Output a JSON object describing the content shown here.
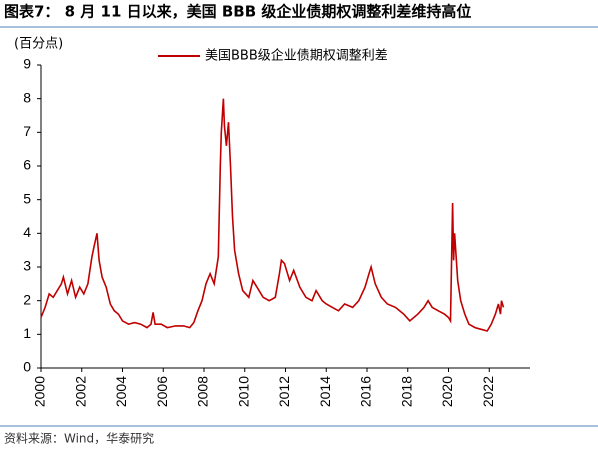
{
  "chart_data": {
    "type": "line",
    "title": "图表7： 8 月 11 日以来，美国 BBB 级企业债期权调整利差维持高位",
    "y_unit": "(百分点)",
    "source": "资料来源：Wind，华泰研究",
    "series": [
      {
        "name": "美国BBB级企业债期权调整利差",
        "color": "#c00000",
        "x": [
          2000.0,
          2000.2,
          2000.4,
          2000.6,
          2000.8,
          2001.0,
          2001.1,
          2001.3,
          2001.5,
          2001.7,
          2001.9,
          2002.1,
          2002.3,
          2002.5,
          2002.6,
          2002.75,
          2002.85,
          2003.0,
          2003.2,
          2003.4,
          2003.6,
          2003.8,
          2004.0,
          2004.3,
          2004.6,
          2004.9,
          2005.2,
          2005.4,
          2005.5,
          2005.6,
          2005.9,
          2006.2,
          2006.6,
          2007.0,
          2007.3,
          2007.5,
          2007.7,
          2007.9,
          2008.1,
          2008.3,
          2008.5,
          2008.7,
          2008.8,
          2008.85,
          2008.95,
          2009.0,
          2009.1,
          2009.2,
          2009.3,
          2009.4,
          2009.5,
          2009.7,
          2009.9,
          2010.2,
          2010.4,
          2010.6,
          2010.9,
          2011.2,
          2011.5,
          2011.7,
          2011.8,
          2011.95,
          2012.2,
          2012.4,
          2012.7,
          2013.0,
          2013.3,
          2013.5,
          2013.8,
          2014.0,
          2014.3,
          2014.6,
          2014.9,
          2015.3,
          2015.6,
          2015.9,
          2016.1,
          2016.2,
          2016.4,
          2016.7,
          2017.0,
          2017.4,
          2017.8,
          2018.1,
          2018.5,
          2018.8,
          2019.0,
          2019.2,
          2019.5,
          2019.8,
          2020.0,
          2020.1,
          2020.2,
          2020.25,
          2020.3,
          2020.45,
          2020.6,
          2020.8,
          2021.0,
          2021.3,
          2021.6,
          2021.9,
          2022.1,
          2022.3,
          2022.45,
          2022.55,
          2022.6,
          2022.7
        ],
        "values": [
          1.5,
          1.8,
          2.2,
          2.1,
          2.3,
          2.5,
          2.7,
          2.2,
          2.6,
          2.1,
          2.4,
          2.2,
          2.5,
          3.3,
          3.6,
          4.0,
          3.2,
          2.7,
          2.4,
          1.9,
          1.7,
          1.6,
          1.4,
          1.3,
          1.35,
          1.3,
          1.2,
          1.3,
          1.65,
          1.3,
          1.3,
          1.2,
          1.25,
          1.25,
          1.2,
          1.35,
          1.7,
          2.0,
          2.5,
          2.8,
          2.5,
          3.3,
          6.0,
          7.0,
          8.0,
          7.2,
          6.6,
          7.3,
          6.0,
          4.5,
          3.5,
          2.8,
          2.3,
          2.1,
          2.6,
          2.4,
          2.1,
          2.0,
          2.1,
          2.8,
          3.2,
          3.1,
          2.6,
          2.9,
          2.4,
          2.1,
          2.0,
          2.3,
          2.0,
          1.9,
          1.8,
          1.7,
          1.9,
          1.8,
          2.0,
          2.4,
          2.8,
          3.0,
          2.5,
          2.1,
          1.9,
          1.8,
          1.6,
          1.4,
          1.6,
          1.8,
          2.0,
          1.8,
          1.7,
          1.6,
          1.5,
          1.4,
          4.9,
          3.2,
          4.0,
          2.6,
          2.0,
          1.6,
          1.3,
          1.2,
          1.15,
          1.1,
          1.3,
          1.6,
          1.9,
          1.6,
          2.0,
          1.8
        ]
      }
    ],
    "xlim": [
      2000,
      2024
    ],
    "xticks": [
      2000,
      2002,
      2004,
      2006,
      2008,
      2010,
      2012,
      2014,
      2016,
      2018,
      2020,
      2022
    ],
    "ylim": [
      0,
      9
    ],
    "yticks": [
      0,
      1,
      2,
      3,
      4,
      5,
      6,
      7,
      8,
      9
    ]
  }
}
